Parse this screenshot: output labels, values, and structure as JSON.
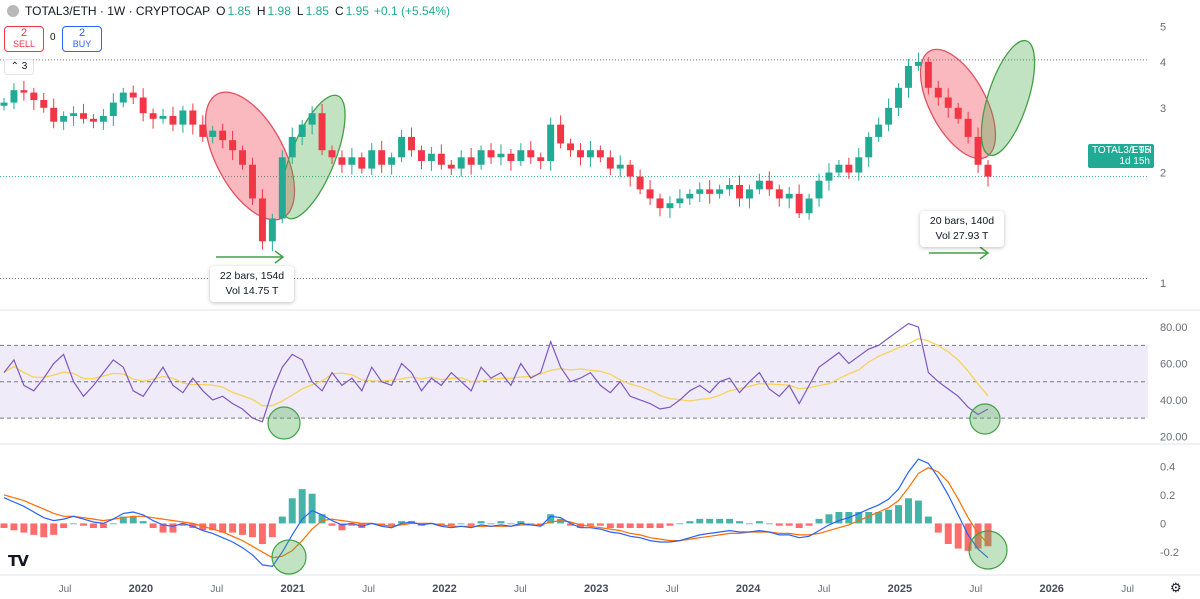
{
  "header": {
    "symbol": "TOTAL3/ETH · 1W · CRYPTOCAP",
    "open_label": "O",
    "open": "1.85",
    "high_label": "H",
    "high": "1.98",
    "low_label": "L",
    "low": "1.85",
    "close_label": "C",
    "close": "1.95",
    "change": "+0.1 (+5.54%)"
  },
  "trade": {
    "sell_count": "2",
    "sell_label": "SELL",
    "buy_count": "2",
    "buy_label": "BUY",
    "spread": "0"
  },
  "indicators_collapsed": "3",
  "price_label": {
    "symbol": "TOTAL3/ETH",
    "value": "1.95",
    "countdown": "1d 15h"
  },
  "measure_tooltips": [
    {
      "line1": "22 bars, 154d",
      "line2": "Vol 14.75 T"
    },
    {
      "line1": "20 bars, 140d",
      "line2": "Vol 27.93 T"
    }
  ],
  "logo": "TV",
  "settings_icon": "gear-icon",
  "colors": {
    "up": "#22ab94",
    "down": "#f23645",
    "rsi": "#7e57c2",
    "rsi_ma": "#f7d358",
    "macd": "#2962ff",
    "signal": "#ff6d00",
    "axis_text": "#6a6d78"
  },
  "chart_data": [
    {
      "type": "candlestick",
      "scale": "log",
      "y_ticks": [
        "5",
        "4",
        "3",
        "2",
        "1"
      ],
      "ylim": [
        0.9,
        5.2
      ],
      "x_ticks": [
        "Jul",
        "2020",
        "Jul",
        "2021",
        "Jul",
        "2022",
        "Jul",
        "2023",
        "Jul",
        "2024",
        "Jul",
        "2025",
        "Jul",
        "2026",
        "Jul"
      ],
      "close_series": [
        3.1,
        3.35,
        3.3,
        3.15,
        3.0,
        2.75,
        2.85,
        2.9,
        2.8,
        2.75,
        2.85,
        3.1,
        3.3,
        3.2,
        2.9,
        2.8,
        2.85,
        2.7,
        2.95,
        2.7,
        2.5,
        2.6,
        2.45,
        2.3,
        2.1,
        1.7,
        1.3,
        1.5,
        2.2,
        2.5,
        2.7,
        2.9,
        2.3,
        2.2,
        2.1,
        2.2,
        2.05,
        2.3,
        2.1,
        2.2,
        2.5,
        2.3,
        2.15,
        2.25,
        2.1,
        2.05,
        2.2,
        2.1,
        2.3,
        2.2,
        2.25,
        2.15,
        2.3,
        2.2,
        2.15,
        2.7,
        2.4,
        2.3,
        2.2,
        2.3,
        2.2,
        2.05,
        2.1,
        1.95,
        1.8,
        1.7,
        1.6,
        1.65,
        1.7,
        1.75,
        1.8,
        1.75,
        1.8,
        1.85,
        1.7,
        1.8,
        1.9,
        1.8,
        1.7,
        1.75,
        1.55,
        1.7,
        1.9,
        2.0,
        2.1,
        2.0,
        2.2,
        2.5,
        2.7,
        3.0,
        3.4,
        3.9,
        4.0,
        3.4,
        3.2,
        3.0,
        2.8,
        2.5,
        2.1,
        1.95
      ],
      "last_price": 1.95,
      "price_line": 1.95,
      "reference_lines": [
        4.05,
        1.03
      ]
    },
    {
      "type": "line",
      "name": "RSI",
      "y_ticks": [
        "80.00",
        "60.00",
        "40.00",
        "20.00"
      ],
      "ylim": [
        18,
        85
      ],
      "band": [
        30,
        70
      ],
      "midline": 50,
      "values": [
        55,
        62,
        48,
        45,
        52,
        60,
        65,
        50,
        42,
        48,
        55,
        62,
        58,
        45,
        42,
        50,
        58,
        48,
        44,
        52,
        45,
        40,
        42,
        38,
        35,
        30,
        28,
        45,
        58,
        65,
        62,
        50,
        45,
        55,
        48,
        52,
        45,
        58,
        50,
        48,
        60,
        55,
        45,
        52,
        48,
        55,
        50,
        45,
        58,
        52,
        55,
        48,
        60,
        52,
        55,
        72,
        58,
        50,
        52,
        55,
        48,
        44,
        50,
        42,
        40,
        38,
        35,
        36,
        40,
        45,
        48,
        44,
        50,
        52,
        44,
        50,
        55,
        46,
        42,
        48,
        38,
        48,
        58,
        62,
        66,
        60,
        64,
        68,
        70,
        74,
        78,
        82,
        80,
        55,
        50,
        46,
        42,
        36,
        32,
        35
      ]
    },
    {
      "type": "macd",
      "y_ticks": [
        "0.4",
        "0.2",
        "0",
        "-0.2"
      ],
      "ylim": [
        -0.34,
        0.5
      ],
      "macd": [
        0.18,
        0.15,
        0.12,
        0.08,
        0.04,
        0.02,
        0.03,
        0.05,
        0.03,
        0.01,
        0.0,
        0.03,
        0.07,
        0.08,
        0.06,
        0.02,
        -0.01,
        -0.02,
        0.0,
        -0.02,
        -0.05,
        -0.07,
        -0.1,
        -0.13,
        -0.17,
        -0.22,
        -0.29,
        -0.3,
        -0.2,
        -0.08,
        0.03,
        0.09,
        0.06,
        0.02,
        -0.01,
        0.0,
        -0.02,
        0.0,
        -0.02,
        -0.03,
        0.0,
        0.01,
        -0.01,
        0.0,
        -0.02,
        -0.03,
        -0.02,
        -0.03,
        -0.01,
        -0.02,
        -0.01,
        -0.02,
        0.0,
        -0.01,
        -0.02,
        0.05,
        0.04,
        0.0,
        -0.03,
        -0.03,
        -0.04,
        -0.06,
        -0.07,
        -0.09,
        -0.1,
        -0.12,
        -0.13,
        -0.13,
        -0.12,
        -0.1,
        -0.08,
        -0.07,
        -0.06,
        -0.05,
        -0.06,
        -0.06,
        -0.05,
        -0.06,
        -0.08,
        -0.08,
        -0.1,
        -0.09,
        -0.05,
        -0.01,
        0.02,
        0.04,
        0.07,
        0.1,
        0.13,
        0.17,
        0.24,
        0.36,
        0.45,
        0.42,
        0.32,
        0.2,
        0.06,
        -0.08,
        -0.18,
        -0.24
      ],
      "signal": [
        0.2,
        0.18,
        0.16,
        0.13,
        0.1,
        0.07,
        0.05,
        0.05,
        0.04,
        0.03,
        0.02,
        0.03,
        0.04,
        0.05,
        0.05,
        0.04,
        0.03,
        0.02,
        0.01,
        0.0,
        -0.02,
        -0.04,
        -0.06,
        -0.09,
        -0.12,
        -0.16,
        -0.2,
        -0.24,
        -0.23,
        -0.19,
        -0.12,
        -0.04,
        0.02,
        0.03,
        0.02,
        0.01,
        0.0,
        0.0,
        -0.01,
        -0.02,
        -0.01,
        0.0,
        0.0,
        0.0,
        -0.01,
        -0.02,
        -0.02,
        -0.02,
        -0.02,
        -0.02,
        -0.02,
        -0.02,
        -0.01,
        -0.01,
        -0.01,
        0.01,
        0.02,
        0.01,
        -0.01,
        -0.02,
        -0.03,
        -0.04,
        -0.05,
        -0.07,
        -0.08,
        -0.1,
        -0.11,
        -0.12,
        -0.12,
        -0.11,
        -0.1,
        -0.09,
        -0.08,
        -0.07,
        -0.07,
        -0.06,
        -0.06,
        -0.06,
        -0.07,
        -0.07,
        -0.08,
        -0.08,
        -0.07,
        -0.05,
        -0.03,
        -0.01,
        0.02,
        0.05,
        0.08,
        0.11,
        0.16,
        0.25,
        0.35,
        0.39,
        0.36,
        0.29,
        0.17,
        0.04,
        -0.07,
        -0.14
      ]
    }
  ]
}
